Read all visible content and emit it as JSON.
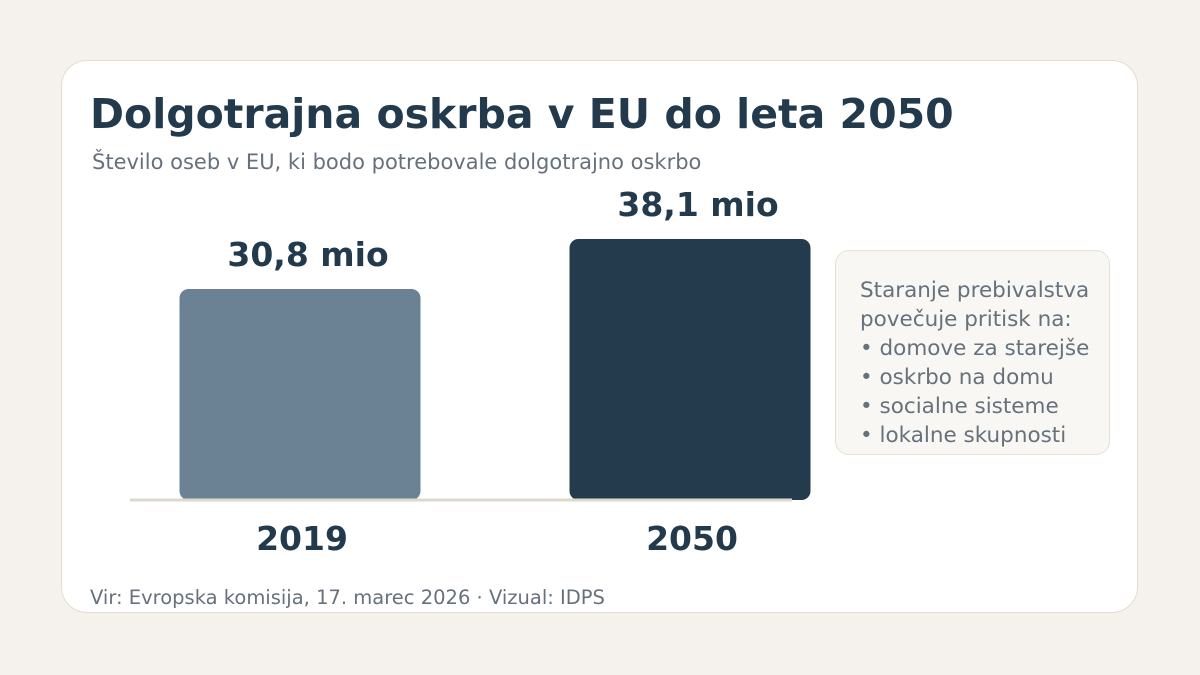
{
  "header": {
    "title": "Dolgotrajna oskrba v EU do leta 2050",
    "subtitle": "Število oseb v EU, ki bodo potrebovale dolgotrajno oskrbo"
  },
  "chart_data": {
    "type": "bar",
    "categories": [
      "2019",
      "2050"
    ],
    "values": [
      30.8,
      38.1
    ],
    "value_labels": [
      "30,8 mio",
      "38,1 mio"
    ],
    "title": "Dolgotrajna oskrba v EU do leta 2050",
    "subtitle": "Število oseb v EU, ki bodo potrebovale dolgotrajno oskrbo",
    "xlabel": "",
    "ylabel": "",
    "unit": "mio",
    "grid": false,
    "colors": [
      "#6b8294",
      "#243a4d"
    ]
  },
  "note": {
    "lines": [
      "Staranje prebivalstva",
      "povečuje pritisk na:",
      "• domove za starejše",
      "• oskrbo na domu",
      "• socialne sisteme",
      "• lokalne skupnosti"
    ]
  },
  "footer": {
    "source": "Vir: Evropska komisija, 17. marec 2026 · Vizual: IDPS"
  },
  "colors": {
    "background": "#f5f2ed",
    "card": "#ffffff",
    "text_dark": "#233a4d",
    "text_muted": "#66717c",
    "baseline": "#dcd8cc"
  }
}
